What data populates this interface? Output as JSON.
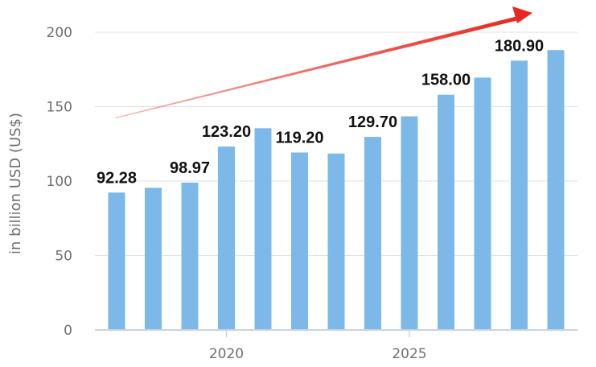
{
  "chart_data": {
    "type": "bar",
    "title": "",
    "xlabel": "",
    "ylabel": "in billion USD (US$)",
    "x": [
      2017,
      2018,
      2019,
      2020,
      2021,
      2022,
      2023,
      2024,
      2025,
      2026,
      2027,
      2028,
      2029
    ],
    "values": [
      92.28,
      95.5,
      98.97,
      123.2,
      135.5,
      119.2,
      118.5,
      129.7,
      143.5,
      158.0,
      169.5,
      180.9,
      188.0
    ],
    "data_labels": [
      {
        "index": 0,
        "text": "92.28"
      },
      {
        "index": 2,
        "text": "98.97"
      },
      {
        "index": 3,
        "text": "123.20"
      },
      {
        "index": 5,
        "text": "119.20"
      },
      {
        "index": 7,
        "text": "129.70"
      },
      {
        "index": 9,
        "text": "158.00"
      },
      {
        "index": 11,
        "text": "180.90"
      }
    ],
    "x_ticks": [
      {
        "value": 2020,
        "label": "2020"
      },
      {
        "value": 2025,
        "label": "2025"
      }
    ],
    "y_ticks": [
      0,
      50,
      100,
      150,
      200
    ],
    "ylim": [
      0,
      200
    ],
    "grid": true,
    "legend": "none",
    "trend_arrow": true,
    "colors": {
      "bar": "#7cb9e8",
      "grid": "#e2e2e2",
      "axis": "#c8d3e6",
      "arrow": "#e8271f"
    }
  }
}
